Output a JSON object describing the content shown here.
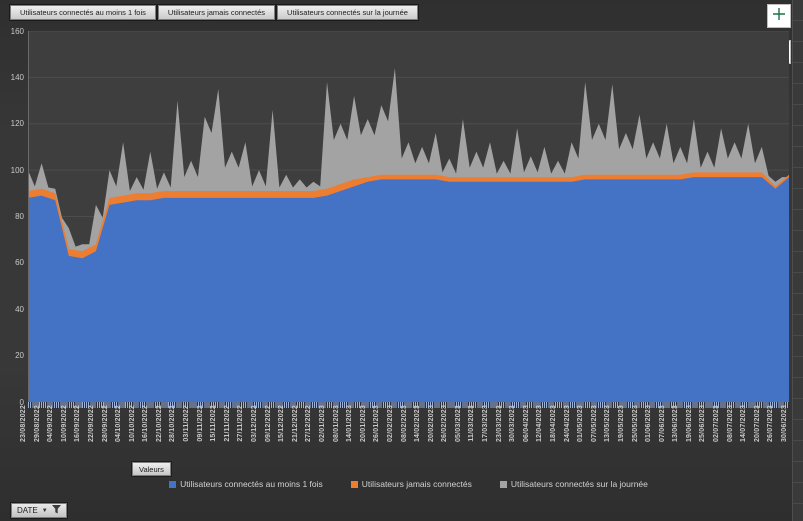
{
  "field_buttons": [
    {
      "label": "Utilisateurs connectés au moins 1 fois"
    },
    {
      "label": "Utilisateurs jamais connectés"
    },
    {
      "label": "Utilisateurs connectés sur la journée"
    }
  ],
  "value_field_button": {
    "label": "Valeurs"
  },
  "axis_field_button": {
    "label": "DATE"
  },
  "legend": [
    {
      "label": "Utilisateurs connectés au moins 1 fois",
      "color": "#4472C4"
    },
    {
      "label": "Utilisateurs jamais connectés",
      "color": "#ED7D31"
    },
    {
      "label": "Utilisateurs connectés sur la journée",
      "color": "#A3A3A3"
    }
  ],
  "colors": {
    "background": "#363636",
    "plot_background": "#3e3e3e",
    "gridline": "#4d4d4d",
    "axis_text": "#c9c9c9",
    "series_blue": "#4472C4",
    "series_orange": "#ED7D31",
    "series_gray": "#A3A3A3",
    "chart_elements_plus": "#1E7145",
    "brush_blue": "#4A9FD8"
  },
  "chart_data": {
    "type": "area",
    "subtype": "overlapping (gray behind, orange middle, blue front)",
    "title": "",
    "xlabel": "DATE",
    "ylabel": "",
    "ylim": [
      0,
      160
    ],
    "ytick_interval": 20,
    "grid": true,
    "legend_position": "bottom",
    "categories": [
      "23/08/2022",
      "29/08/2022",
      "04/09/2022",
      "10/09/2022",
      "16/09/2022",
      "22/09/2022",
      "28/09/2022",
      "04/10/2022",
      "10/10/2022",
      "16/10/2022",
      "22/10/2022",
      "28/10/2022",
      "03/11/2022",
      "09/11/2022",
      "15/11/2022",
      "21/11/2022",
      "27/11/2022",
      "03/12/2022",
      "09/12/2022",
      "15/12/2022",
      "21/12/2022",
      "27/12/2022",
      "02/01/2023",
      "08/01/2023",
      "14/01/2023",
      "20/01/2023",
      "26/01/2023",
      "02/02/2023",
      "08/02/2023",
      "14/02/2023",
      "20/02/2023",
      "26/02/2023",
      "05/03/2023",
      "11/03/2023",
      "17/03/2023",
      "23/03/2023",
      "30/03/2023",
      "06/04/2023",
      "12/04/2023",
      "18/04/2023",
      "24/04/2023",
      "01/05/2023",
      "07/05/2023",
      "13/05/2023",
      "19/05/2023",
      "25/05/2023",
      "01/06/2023",
      "07/06/2023",
      "13/06/2023",
      "19/06/2023",
      "25/06/2023",
      "02/07/2023",
      "08/07/2023",
      "14/07/2023",
      "20/07/2023",
      "26/07/2023",
      "30/06/2023"
    ],
    "series": [
      {
        "name": "Utilisateurs connectés au moins 1 fois",
        "color": "#4472C4",
        "values": [
          88,
          89,
          87,
          63,
          62,
          65,
          85,
          86,
          87,
          87,
          88,
          88,
          88,
          88,
          88,
          88,
          88,
          88,
          88,
          88,
          88,
          88,
          89,
          91,
          93,
          95,
          96,
          96,
          96,
          96,
          96,
          95,
          95,
          95,
          95,
          95,
          95,
          95,
          95,
          95,
          95,
          96,
          96,
          96,
          96,
          96,
          96,
          96,
          96,
          97,
          97,
          97,
          97,
          97,
          97,
          92,
          97
        ]
      },
      {
        "name": "Utilisateurs jamais connectés",
        "color": "#ED7D31",
        "values": [
          91,
          92,
          90,
          66,
          65,
          68,
          88,
          89,
          90,
          90,
          91,
          91,
          91,
          91,
          91,
          91,
          91,
          91,
          91,
          91,
          91,
          91,
          92,
          94,
          96,
          97,
          98,
          98,
          98,
          98,
          98,
          97,
          97,
          97,
          97,
          97,
          97,
          97,
          97,
          97,
          97,
          98,
          98,
          98,
          98,
          98,
          98,
          98,
          98,
          99,
          99,
          99,
          99,
          99,
          99,
          93,
          98
        ]
      },
      {
        "name": "Utilisateurs connectés sur la journée",
        "color": "#A3A3A3",
        "values": [
          100,
          103,
          92,
          75,
          68,
          85,
          100,
          112,
          97,
          108,
          99,
          130,
          104,
          123,
          135,
          108,
          112,
          100,
          126,
          98,
          96,
          95,
          138,
          120,
          132,
          122,
          128,
          144,
          112,
          110,
          116,
          105,
          122,
          108,
          112,
          104,
          118,
          106,
          110,
          104,
          112,
          138,
          120,
          137,
          116,
          124,
          112,
          120,
          110,
          122,
          108,
          118,
          112,
          120,
          110,
          95,
          97
        ]
      }
    ]
  }
}
